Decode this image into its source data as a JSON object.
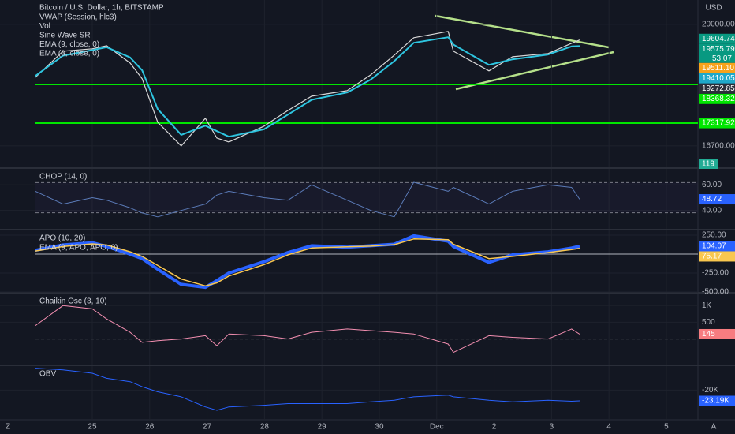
{
  "chart_data": [
    {
      "type": "line",
      "title": "Bitcoin / U.S. Dollar, 1h, BITSTAMP",
      "legend": [
        "VWAP (Session, hlc3)",
        "Vol",
        "Sine Wave SR",
        "EMA (9, close, 0)",
        "EMA (3, close, 0)"
      ],
      "axis_unit": "USD",
      "x": [
        -0.99,
        -0.51,
        0,
        0.25,
        0.66,
        0.87,
        1.14,
        1.55,
        1.97,
        2.17,
        2.38,
        2.99,
        3.41,
        3.82,
        4.44,
        4.85,
        5.26,
        5.6,
        6.2,
        6.29,
        6.91,
        7.32,
        7.94,
        8.35,
        8.49
      ],
      "xlim": [
        -1.607,
        10.55
      ],
      "xticks": [
        {
          "value": 0,
          "label": "25"
        },
        {
          "value": 1,
          "label": "26"
        },
        {
          "value": 2,
          "label": "27"
        },
        {
          "value": 3,
          "label": "28"
        },
        {
          "value": 4,
          "label": "29"
        },
        {
          "value": 5,
          "label": "30"
        },
        {
          "value": 6,
          "label": "Dec"
        },
        {
          "value": 7,
          "label": "2"
        },
        {
          "value": 8,
          "label": "3"
        },
        {
          "value": 9,
          "label": "4"
        },
        {
          "value": 10,
          "label": "5"
        }
      ],
      "ylim": [
        16120,
        20660
      ],
      "yticks": [
        {
          "value": 20000,
          "label": "20000.00"
        },
        {
          "value": 16700,
          "label": "16700.00"
        }
      ],
      "series": [
        {
          "color": "#d9d9d9",
          "width": 1.2,
          "values": [
            18564,
            19271,
            19336,
            19421,
            18950,
            18521,
            17343,
            16700,
            17450,
            16914,
            16807,
            17236,
            17664,
            18050,
            18200,
            18628,
            19164,
            19636,
            19807,
            19271,
            18736,
            19121,
            19207,
            19486,
            19575
          ]
        },
        {
          "name": "EMA (9, close, 0)",
          "color": "#2ec5e0",
          "width": 2,
          "values": [
            18600,
            19150,
            19300,
            19380,
            19100,
            18750,
            17700,
            17000,
            17250,
            17100,
            16950,
            17150,
            17550,
            17950,
            18150,
            18500,
            19000,
            19500,
            19650,
            19450,
            18900,
            19050,
            19180,
            19400,
            19410
          ]
        }
      ],
      "hlines": [
        {
          "value": 18368.32,
          "color": "#00e600"
        },
        {
          "value": 17317.92,
          "color": "#00e600"
        }
      ],
      "badges": [
        {
          "value": 19604.74,
          "color": "#089981"
        },
        {
          "value": 19575.79,
          "color": "#089981",
          "countdown": "53:07"
        },
        {
          "value": 19511.1,
          "label": "19511.10",
          "color": "#f7a21b"
        },
        {
          "value": 19410.05,
          "color": "#1fa8c9"
        },
        {
          "value": 19272.85,
          "color": "#2a2e39"
        }
      ],
      "volume_last": 119
    },
    {
      "type": "line",
      "title": "CHOP (14, 0)",
      "ylim": [
        25.6,
        72.5
      ],
      "yticks": [
        {
          "value": 60,
          "label": "60.00"
        },
        {
          "value": 40,
          "label": "40.00"
        }
      ],
      "bands": [
        61.8,
        38.2
      ],
      "series": [
        {
          "color": "#5b7bb8",
          "width": 1,
          "values": [
            55,
            45,
            50,
            48,
            42,
            38,
            35,
            40,
            45,
            52,
            55,
            50,
            48,
            60,
            48,
            40,
            35,
            62,
            55,
            58,
            45,
            55,
            60,
            58,
            48.72
          ]
        }
      ],
      "badges": [
        {
          "value": 48.72,
          "color": "#2962ff"
        }
      ]
    },
    {
      "type": "line",
      "title": "APO (10, 20)",
      "legend": [
        "EMA (9, APO, APO, 0)"
      ],
      "ylim": [
        -500,
        312
      ],
      "yticks": [
        {
          "value": 250,
          "label": "250.00"
        },
        {
          "value": -250,
          "label": "-250.00"
        },
        {
          "value": -500,
          "label": "-500.00"
        }
      ],
      "hlines": [
        {
          "value": 0,
          "color": "#b2b5be"
        }
      ],
      "series": [
        {
          "color": "#2962ff",
          "width": 4,
          "values": [
            50,
            120,
            150,
            100,
            0,
            -60,
            -200,
            -400,
            -440,
            -350,
            -250,
            -100,
            20,
            110,
            90,
            110,
            130,
            240,
            170,
            100,
            -110,
            -10,
            30,
            80,
            104.07
          ]
        },
        {
          "color": "#f9c74f",
          "width": 1.5,
          "values": [
            40,
            100,
            135,
            120,
            30,
            -30,
            -150,
            -330,
            -420,
            -380,
            -290,
            -140,
            -10,
            80,
            95,
            105,
            125,
            200,
            190,
            130,
            -60,
            -30,
            20,
            60,
            75.17
          ]
        }
      ],
      "badges": [
        {
          "value": 104.07,
          "color": "#2962ff"
        },
        {
          "value": 75.17,
          "color": "#f9c74f"
        }
      ]
    },
    {
      "type": "line",
      "title": "Chaikin Osc (3, 10)",
      "ylim": [
        -762,
        1357
      ],
      "yticks": [
        {
          "value": 1000,
          "label": "1K"
        },
        500
      ],
      "hlines": [
        {
          "value": 0,
          "color": "#787b86",
          "dash": true
        }
      ],
      "series": [
        {
          "color": "#f48fb1",
          "width": 1,
          "values": [
            400,
            1000,
            900,
            600,
            200,
            -100,
            -50,
            0,
            100,
            -200,
            150,
            100,
            0,
            200,
            300,
            250,
            200,
            150,
            -150,
            -400,
            100,
            50,
            0,
            300,
            145
          ]
        }
      ],
      "badges": [
        {
          "value": 145,
          "color": "#f77c80"
        }
      ]
    },
    {
      "type": "line",
      "title": "OBV",
      "ylim": [
        -28800,
        -12900
      ],
      "yticks": [
        {
          "value": -20000,
          "label": "-20K"
        }
      ],
      "series": [
        {
          "color": "#2962ff",
          "width": 1,
          "values": [
            -13500,
            -14000,
            -15000,
            -16500,
            -17500,
            -19000,
            -20500,
            -22000,
            -25000,
            -26000,
            -25000,
            -24500,
            -24000,
            -24000,
            -24000,
            -23500,
            -23000,
            -22000,
            -21500,
            -22000,
            -23000,
            -23500,
            -23000,
            -23300,
            -23190
          ]
        }
      ],
      "badges": [
        {
          "value": -23190,
          "label": "-23.19K",
          "color": "#2962ff"
        }
      ]
    }
  ]
}
